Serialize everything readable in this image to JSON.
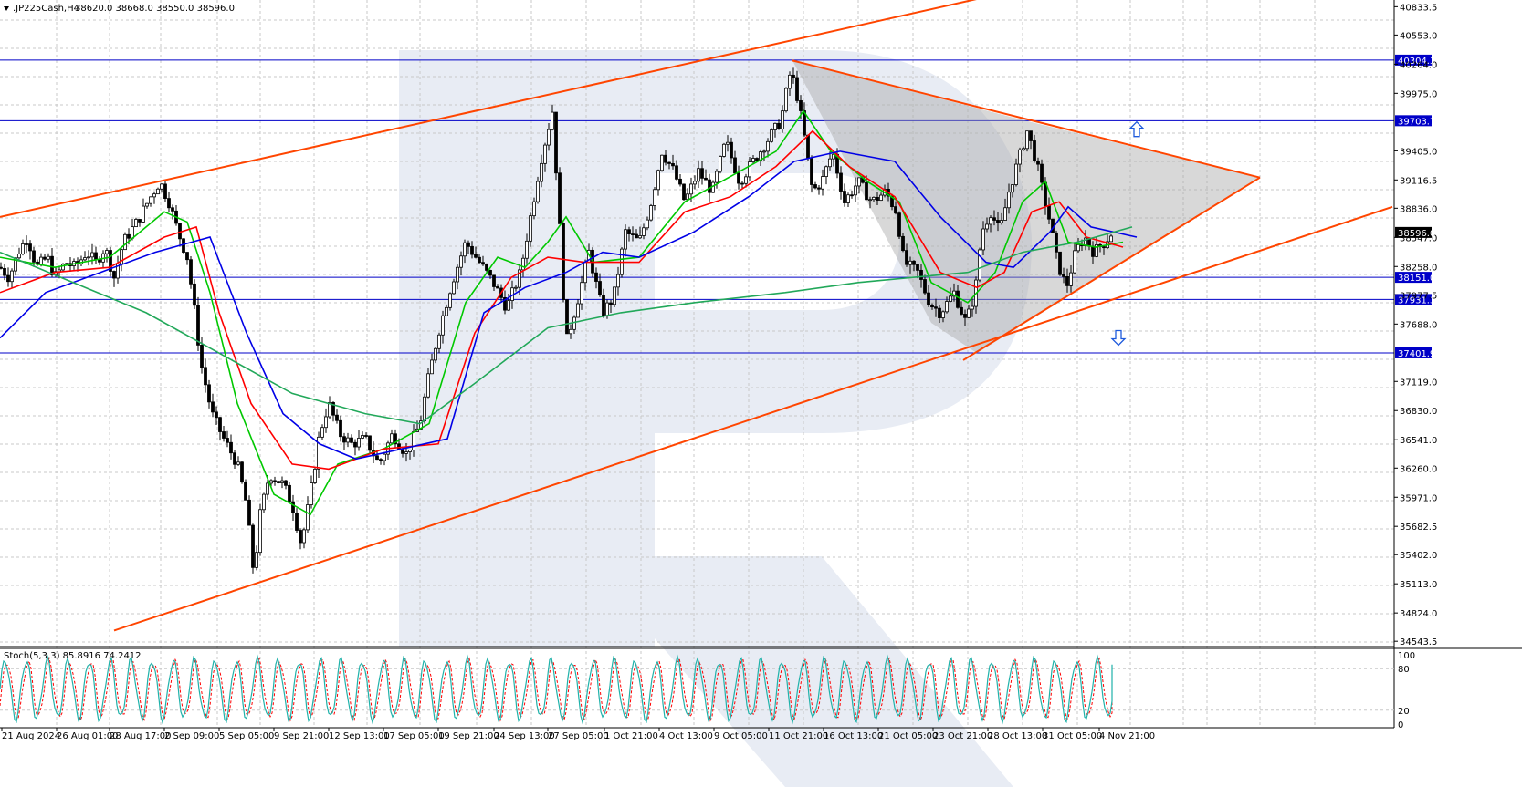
{
  "header": {
    "symbol_text": ".JP225Cash,H4",
    "ohlc_text": "38620.0 38668.0 38550.0 38596.0"
  },
  "indicator": {
    "label": "Stoch(5,3,3) 85.8916 74.2412",
    "levels": [
      "100",
      "80",
      "20",
      "0"
    ]
  },
  "colors": {
    "background": "#ffffff",
    "grid": "#c8c8c8",
    "candle": "#000000",
    "ma_fast": "#00c800",
    "ma_mid": "#ff0000",
    "ma_slow": "#0000e6",
    "ma_long": "#22a85a",
    "trendline": "#ff4500",
    "hline": "#0000c8",
    "stoch_main": "#20b2aa",
    "stoch_signal": "#ff0000",
    "watermark": "#e6eaf2"
  },
  "chart_data": {
    "type": "candlestick",
    "price_axis_labels": [
      "40833.5",
      "40553.0",
      "40264.0",
      "39975.0",
      "39405.0",
      "39116.5",
      "38836.0",
      "38547.0",
      "38258.0",
      "37977.5",
      "37688.0",
      "37119.0",
      "36830.0",
      "36541.0",
      "36260.0",
      "35971.0",
      "35682.5",
      "35402.0",
      "35113.0",
      "34824.0",
      "34543.5"
    ],
    "time_axis_labels": [
      "21 Aug 2024",
      "26 Aug 01:00",
      "28 Aug 17:00",
      "2 Sep 09:00",
      "5 Sep 05:00",
      "9 Sep 21:00",
      "12 Sep 13:00",
      "17 Sep 05:00",
      "19 Sep 21:00",
      "24 Sep 13:00",
      "27 Sep 05:00",
      "1 Oct 21:00",
      "4 Oct 13:00",
      "9 Oct 05:00",
      "11 Oct 21:00",
      "16 Oct 13:00",
      "21 Oct 05:00",
      "23 Oct 21:00",
      "28 Oct 13:00",
      "31 Oct 05:00",
      "4 Nov 21:00"
    ],
    "horizontal_levels": [
      {
        "label": "40304.3",
        "value": 40304.3
      },
      {
        "label": "39703.7",
        "value": 39703.7
      },
      {
        "label": "38151.0",
        "value": 38151.0
      },
      {
        "label": "37931.3",
        "value": 37931.3
      },
      {
        "label": "37401.9",
        "value": 37401.9
      }
    ],
    "current_price": {
      "label": "38596.0",
      "value": 38596.0
    },
    "price_range": [
      34500,
      40900
    ],
    "close_path": [
      [
        0,
        38250
      ],
      [
        10,
        38150
      ],
      [
        20,
        38400
      ],
      [
        30,
        38550
      ],
      [
        40,
        38250
      ],
      [
        52,
        38350
      ],
      [
        60,
        38150
      ],
      [
        72,
        38300
      ],
      [
        82,
        38250
      ],
      [
        95,
        38400
      ],
      [
        105,
        38300
      ],
      [
        115,
        38450
      ],
      [
        125,
        38150
      ],
      [
        135,
        38500
      ],
      [
        150,
        38700
      ],
      [
        165,
        38950
      ],
      [
        175,
        39100
      ],
      [
        185,
        38900
      ],
      [
        195,
        38600
      ],
      [
        205,
        38350
      ],
      [
        212,
        37900
      ],
      [
        220,
        37300
      ],
      [
        232,
        36800
      ],
      [
        245,
        36550
      ],
      [
        260,
        36300
      ],
      [
        270,
        35900
      ],
      [
        278,
        35200
      ],
      [
        285,
        35800
      ],
      [
        295,
        36200
      ],
      [
        310,
        36100
      ],
      [
        320,
        35900
      ],
      [
        330,
        35500
      ],
      [
        340,
        36000
      ],
      [
        350,
        36600
      ],
      [
        360,
        36900
      ],
      [
        372,
        36600
      ],
      [
        385,
        36500
      ],
      [
        400,
        36550
      ],
      [
        415,
        36300
      ],
      [
        430,
        36600
      ],
      [
        445,
        36400
      ],
      [
        460,
        36700
      ],
      [
        468,
        37100
      ],
      [
        480,
        37600
      ],
      [
        495,
        38100
      ],
      [
        510,
        38500
      ],
      [
        525,
        38300
      ],
      [
        540,
        38100
      ],
      [
        555,
        37850
      ],
      [
        570,
        38200
      ],
      [
        580,
        38700
      ],
      [
        592,
        39300
      ],
      [
        605,
        39800
      ],
      [
        612,
        38800
      ],
      [
        620,
        37500
      ],
      [
        632,
        37900
      ],
      [
        645,
        38400
      ],
      [
        660,
        37800
      ],
      [
        672,
        37950
      ],
      [
        685,
        38600
      ],
      [
        700,
        38500
      ],
      [
        712,
        38850
      ],
      [
        725,
        39400
      ],
      [
        738,
        39200
      ],
      [
        750,
        38900
      ],
      [
        765,
        39200
      ],
      [
        780,
        39000
      ],
      [
        795,
        39500
      ],
      [
        810,
        39100
      ],
      [
        825,
        39300
      ],
      [
        840,
        39500
      ],
      [
        855,
        39700
      ],
      [
        866,
        40200
      ],
      [
        872,
        40000
      ],
      [
        880,
        39600
      ],
      [
        890,
        39000
      ],
      [
        900,
        39100
      ],
      [
        912,
        39400
      ],
      [
        925,
        38900
      ],
      [
        940,
        39100
      ],
      [
        955,
        38900
      ],
      [
        970,
        39000
      ],
      [
        982,
        38800
      ],
      [
        990,
        38300
      ],
      [
        1005,
        38200
      ],
      [
        1018,
        37900
      ],
      [
        1030,
        37800
      ],
      [
        1045,
        38000
      ],
      [
        1058,
        37700
      ],
      [
        1068,
        38000
      ],
      [
        1075,
        38600
      ],
      [
        1085,
        38800
      ],
      [
        1095,
        38600
      ],
      [
        1105,
        39000
      ],
      [
        1115,
        39300
      ],
      [
        1125,
        39600
      ],
      [
        1135,
        39300
      ],
      [
        1142,
        39000
      ],
      [
        1150,
        38700
      ],
      [
        1158,
        38300
      ],
      [
        1168,
        38050
      ],
      [
        1178,
        38400
      ],
      [
        1188,
        38550
      ],
      [
        1198,
        38400
      ],
      [
        1210,
        38500
      ],
      [
        1218,
        38596
      ]
    ],
    "moving_averages": [
      {
        "color_key": "ma_fast",
        "points": [
          [
            0,
            38350
          ],
          [
            60,
            38250
          ],
          [
            120,
            38350
          ],
          [
            180,
            38800
          ],
          [
            205,
            38700
          ],
          [
            230,
            38000
          ],
          [
            260,
            36900
          ],
          [
            300,
            36000
          ],
          [
            340,
            35800
          ],
          [
            370,
            36300
          ],
          [
            420,
            36450
          ],
          [
            470,
            36700
          ],
          [
            510,
            37900
          ],
          [
            545,
            38350
          ],
          [
            575,
            38250
          ],
          [
            600,
            38500
          ],
          [
            620,
            38750
          ],
          [
            650,
            38300
          ],
          [
            700,
            38350
          ],
          [
            750,
            38900
          ],
          [
            800,
            39150
          ],
          [
            850,
            39400
          ],
          [
            880,
            39800
          ],
          [
            910,
            39400
          ],
          [
            950,
            39100
          ],
          [
            985,
            38900
          ],
          [
            1020,
            38100
          ],
          [
            1060,
            37900
          ],
          [
            1090,
            38200
          ],
          [
            1120,
            38900
          ],
          [
            1145,
            39100
          ],
          [
            1170,
            38500
          ],
          [
            1200,
            38450
          ],
          [
            1230,
            38500
          ]
        ]
      },
      {
        "color_key": "ma_mid",
        "points": [
          [
            0,
            38000
          ],
          [
            60,
            38200
          ],
          [
            120,
            38250
          ],
          [
            180,
            38550
          ],
          [
            215,
            38650
          ],
          [
            240,
            37800
          ],
          [
            275,
            36900
          ],
          [
            320,
            36300
          ],
          [
            360,
            36250
          ],
          [
            420,
            36450
          ],
          [
            480,
            36500
          ],
          [
            520,
            37600
          ],
          [
            560,
            38150
          ],
          [
            600,
            38350
          ],
          [
            640,
            38300
          ],
          [
            700,
            38300
          ],
          [
            750,
            38800
          ],
          [
            800,
            38950
          ],
          [
            850,
            39250
          ],
          [
            890,
            39600
          ],
          [
            930,
            39250
          ],
          [
            980,
            38950
          ],
          [
            1030,
            38200
          ],
          [
            1070,
            38050
          ],
          [
            1100,
            38200
          ],
          [
            1130,
            38800
          ],
          [
            1160,
            38900
          ],
          [
            1190,
            38550
          ],
          [
            1230,
            38450
          ]
        ]
      },
      {
        "color_key": "ma_slow",
        "points": [
          [
            0,
            37550
          ],
          [
            50,
            38000
          ],
          [
            110,
            38200
          ],
          [
            170,
            38400
          ],
          [
            230,
            38550
          ],
          [
            270,
            37600
          ],
          [
            310,
            36800
          ],
          [
            350,
            36500
          ],
          [
            390,
            36350
          ],
          [
            440,
            36450
          ],
          [
            490,
            36550
          ],
          [
            530,
            37800
          ],
          [
            575,
            38050
          ],
          [
            620,
            38200
          ],
          [
            660,
            38400
          ],
          [
            700,
            38350
          ],
          [
            760,
            38600
          ],
          [
            820,
            38950
          ],
          [
            870,
            39300
          ],
          [
            920,
            39400
          ],
          [
            980,
            39300
          ],
          [
            1030,
            38750
          ],
          [
            1080,
            38300
          ],
          [
            1110,
            38250
          ],
          [
            1150,
            38600
          ],
          [
            1170,
            38850
          ],
          [
            1195,
            38650
          ],
          [
            1245,
            38550
          ]
        ]
      },
      {
        "color_key": "ma_long",
        "points": [
          [
            0,
            38400
          ],
          [
            80,
            38100
          ],
          [
            160,
            37800
          ],
          [
            240,
            37400
          ],
          [
            320,
            37000
          ],
          [
            400,
            36800
          ],
          [
            460,
            36700
          ],
          [
            520,
            37100
          ],
          [
            600,
            37650
          ],
          [
            680,
            37800
          ],
          [
            760,
            37900
          ],
          [
            860,
            38000
          ],
          [
            940,
            38100
          ],
          [
            1000,
            38150
          ],
          [
            1060,
            38200
          ],
          [
            1120,
            38400
          ],
          [
            1180,
            38500
          ],
          [
            1240,
            38650
          ]
        ]
      }
    ],
    "trend_lines": [
      {
        "p1": [
          0,
          38750
        ],
        "p2": [
          1090,
          40950
        ]
      },
      {
        "p1": [
          125,
          34650
        ],
        "p2": [
          1525,
          38850
        ]
      },
      {
        "p1": [
          868,
          40300
        ],
        "p2": [
          1380,
          39140
        ]
      },
      {
        "p1": [
          1055,
          37330
        ],
        "p2": [
          1380,
          39140
        ]
      }
    ],
    "triangle_fill": [
      [
        868,
        40300
      ],
      [
        1125,
        39700
      ],
      [
        1380,
        39140
      ],
      [
        1070,
        37400
      ],
      [
        1020,
        37700
      ]
    ],
    "arrows": [
      {
        "dir": "up",
        "x": 1245,
        "value": 39610
      },
      {
        "dir": "down",
        "x": 1225,
        "value": 37560
      }
    ],
    "stochastic": {
      "range": [
        0,
        100
      ],
      "period": 23,
      "main_last": 85.8916,
      "signal_last": 74.2412
    }
  }
}
